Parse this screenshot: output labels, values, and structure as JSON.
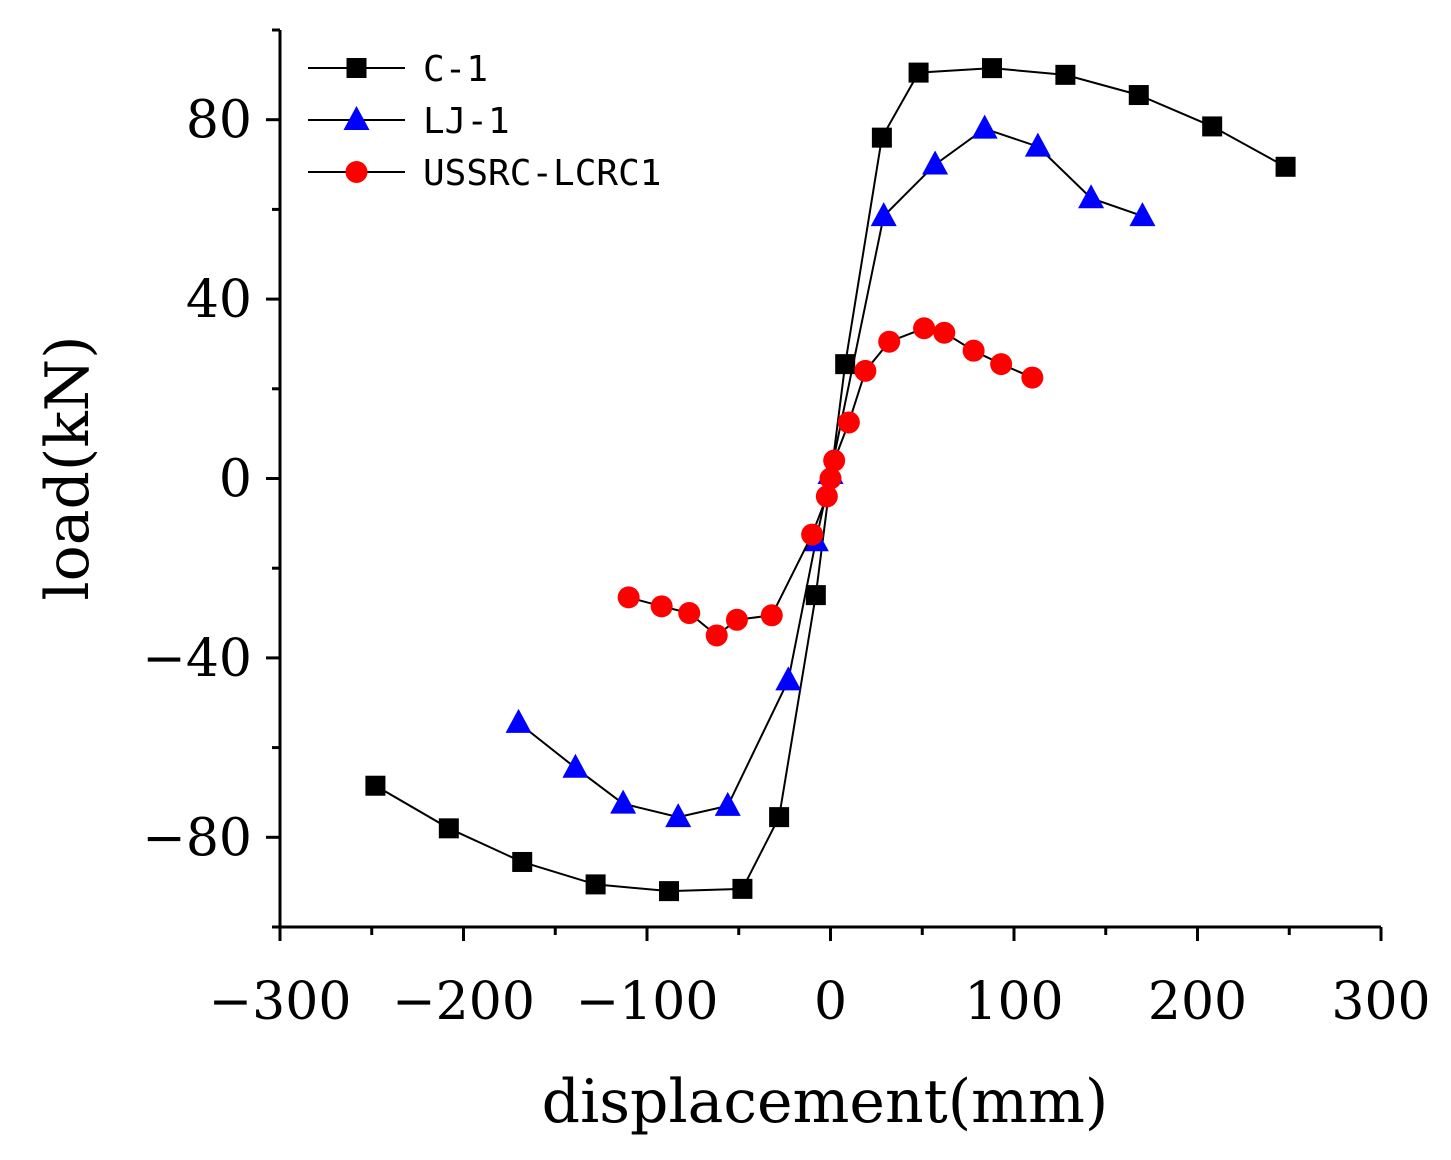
{
  "chart_data": {
    "type": "line",
    "xlabel": "displacement(mm)",
    "ylabel": "load(kN)",
    "xlim": [
      -300,
      300
    ],
    "ylim": [
      -100,
      100
    ],
    "x_ticks": [
      -300,
      -200,
      -100,
      0,
      100,
      200,
      300
    ],
    "y_ticks": [
      -80,
      -40,
      0,
      40,
      80
    ],
    "x_tick_labels": [
      "−300",
      "−200",
      "−100",
      "0",
      "100",
      "200",
      "300"
    ],
    "y_tick_labels": [
      "−80",
      "−40",
      "0",
      "40",
      "80"
    ],
    "legend_position": "top-left",
    "series": [
      {
        "name": "C-1",
        "marker": "square",
        "color": "#000000",
        "points": [
          [
            -248,
            -68.5
          ],
          [
            -208,
            -78
          ],
          [
            -168,
            -85.5
          ],
          [
            -128,
            -90.5
          ],
          [
            -88,
            -92
          ],
          [
            -48,
            -91.5
          ],
          [
            -28,
            -75.5
          ],
          [
            -8,
            -26
          ],
          [
            8,
            25.5
          ],
          [
            28,
            76
          ],
          [
            48,
            90.5
          ],
          [
            88,
            91.5
          ],
          [
            128,
            90
          ],
          [
            168,
            85.5
          ],
          [
            208,
            78.5
          ],
          [
            248,
            69.5
          ]
        ]
      },
      {
        "name": "LJ-1",
        "marker": "triangle",
        "color": "#0000ff",
        "points": [
          [
            -170,
            -54.5
          ],
          [
            -139,
            -64.5
          ],
          [
            -113,
            -72.5
          ],
          [
            -83,
            -75.5
          ],
          [
            -56,
            -73
          ],
          [
            -23,
            -45
          ],
          [
            -8,
            -14
          ],
          [
            0,
            1
          ],
          [
            29,
            58.5
          ],
          [
            57,
            70
          ],
          [
            84,
            78
          ],
          [
            113,
            74
          ],
          [
            142,
            62.5
          ],
          [
            170,
            58.5
          ]
        ]
      },
      {
        "name": "USSRC-LCRC1",
        "marker": "circle",
        "color": "#ff0000",
        "points": [
          [
            -110,
            -26.5
          ],
          [
            -92,
            -28.5
          ],
          [
            -77,
            -30
          ],
          [
            -62,
            -35
          ],
          [
            -51,
            -31.5
          ],
          [
            -32,
            -30.5
          ],
          [
            -10,
            -12.5
          ],
          [
            -2,
            -4
          ],
          [
            0,
            0
          ],
          [
            2,
            4
          ],
          [
            10,
            12.5
          ],
          [
            19,
            24
          ],
          [
            32,
            30.5
          ],
          [
            51,
            33.5
          ],
          [
            62,
            32.5
          ],
          [
            78,
            28.5
          ],
          [
            93,
            25.5
          ],
          [
            110,
            22.5
          ]
        ]
      }
    ]
  }
}
